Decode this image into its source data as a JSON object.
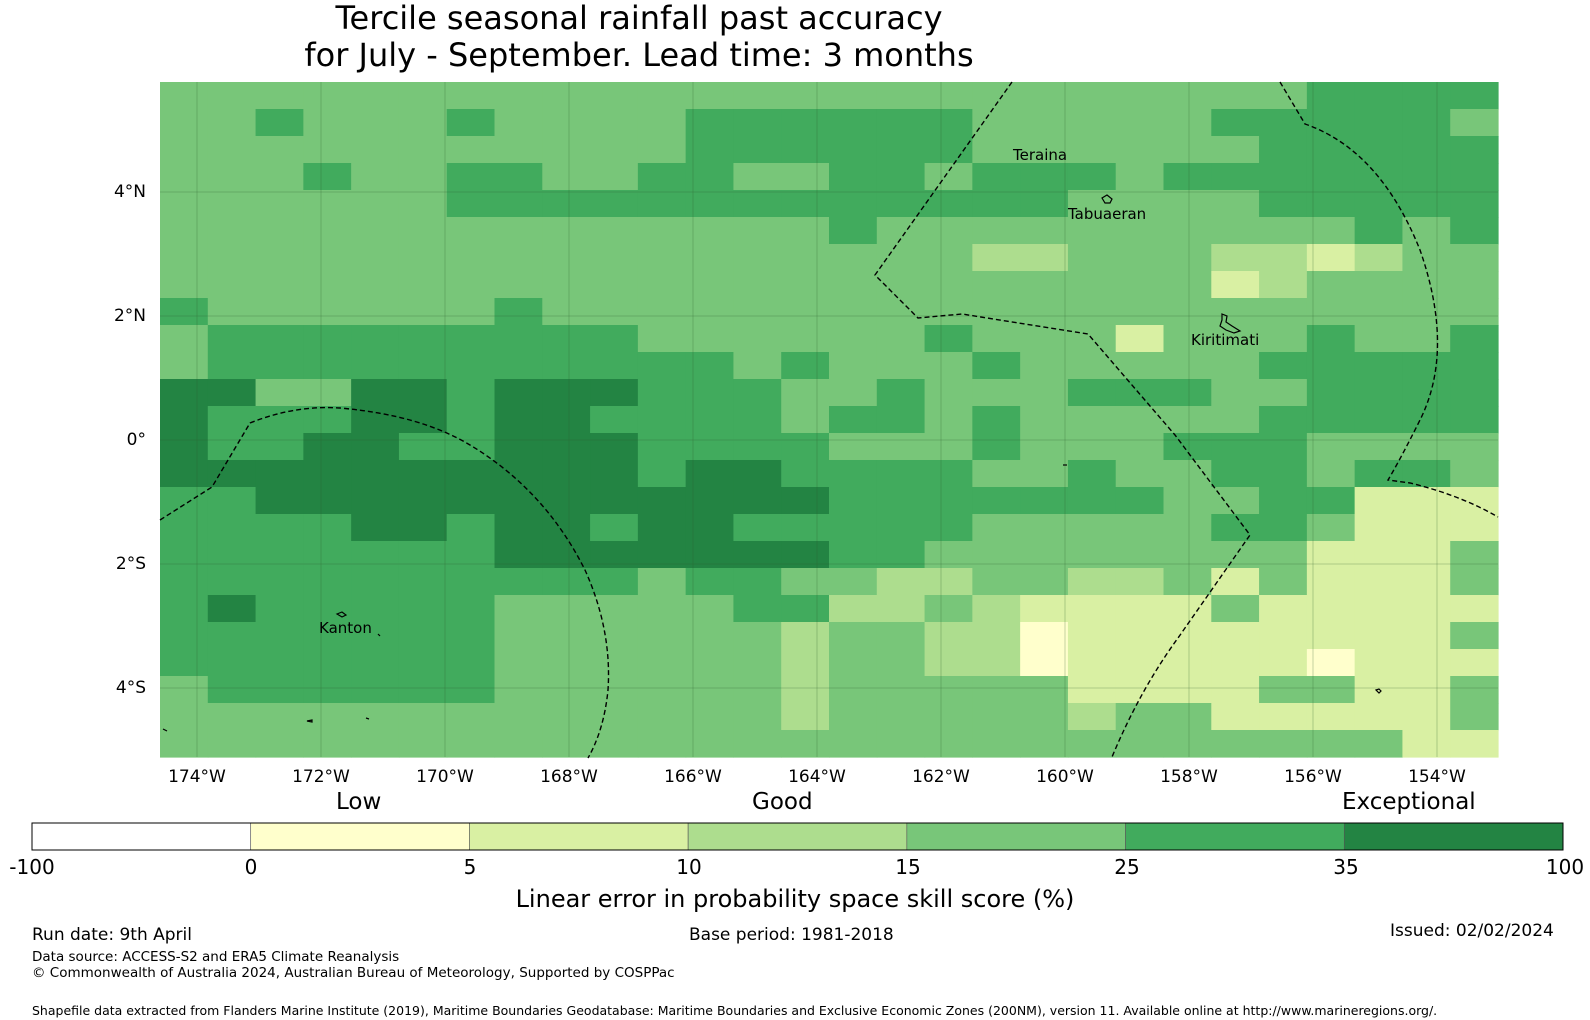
{
  "title_line1": "Tercile seasonal rainfall past accuracy",
  "title_line2": "for July - September. Lead time: 3 months",
  "map": {
    "lat_labels": [
      "4°N",
      "2°N",
      "0°",
      "2°S",
      "4°S"
    ],
    "lon_labels": [
      "174°W",
      "172°W",
      "170°W",
      "168°W",
      "166°W",
      "164°W",
      "162°W",
      "160°W",
      "158°W",
      "156°W",
      "154°W"
    ],
    "places": [
      "Teraina",
      "Tabuaeran",
      "Kiritimati",
      "Kanton"
    ],
    "category_colors": [
      "#ffffff",
      "#ffffcc",
      "#d9f0a3",
      "#addd8e",
      "#78c679",
      "#41ab5d",
      "#238443"
    ],
    "grid_legend": "0=none,1=0-5,2=5-10,3=10-15,4=15-25,5=25-35,6=35-100",
    "grid": [
      "4444444444444444444444445555",
      "4454445444455555544444555554",
      "4444444444455555544444455555",
      "4445445544554455455545555555",
      "4444445555555555555444455555",
      "4444444444444454444444444545",
      "4444444444444444433444332344",
      "4444444444444444444444234444",
      "5444444544444444444444444444",
      "4555555555444444544424445445",
      "4555555555554544454444455555",
      "6644665666555445444555445555",
      "6555665665555455454444455555",
      "6556655666555544454445554444",
      "6666666666566555544544554554",
      "5566666666666655555554455222",
      "5555665665665555544444554222",
      "5555555666666655444444442224",
      "5555555555455443344334242224",
      "5655555444445533432222422222",
      "5555555444444344331222222224",
      "5555555444444344331222221222",
      "4555555444444344444222244224",
      "4444444444444344444344222224",
      "4444444444444444444444444422"
    ]
  },
  "colorbar": {
    "categories": [
      "Low",
      "Good",
      "Exceptional"
    ],
    "ticks": [
      "-100",
      "0",
      "5",
      "10",
      "15",
      "25",
      "35",
      "100"
    ],
    "colors": [
      "#ffffff",
      "#ffffcc",
      "#d9f0a3",
      "#addd8e",
      "#78c679",
      "#41ab5d",
      "#238443"
    ],
    "title": "Linear error in probability space skill score (%)"
  },
  "footer": {
    "run_date": "Run date: 9th April",
    "base_period": "Base period: 1981-2018",
    "issued": "Issued: 02/02/2024",
    "data_source": "Data source: ACCESS-S2 and ERA5 Climate Reanalysis",
    "copyright": "© Commonwealth of Australia 2024, Australian Bureau of Meteorology, Supported by COSPPac",
    "shapefile": "Shapefile data extracted from Flanders Marine Institute (2019), Maritime Boundaries Geodatabase: Maritime Boundaries and Exclusive Economic Zones (200NM), version 11. Available online at http://www.marineregions.org/."
  }
}
